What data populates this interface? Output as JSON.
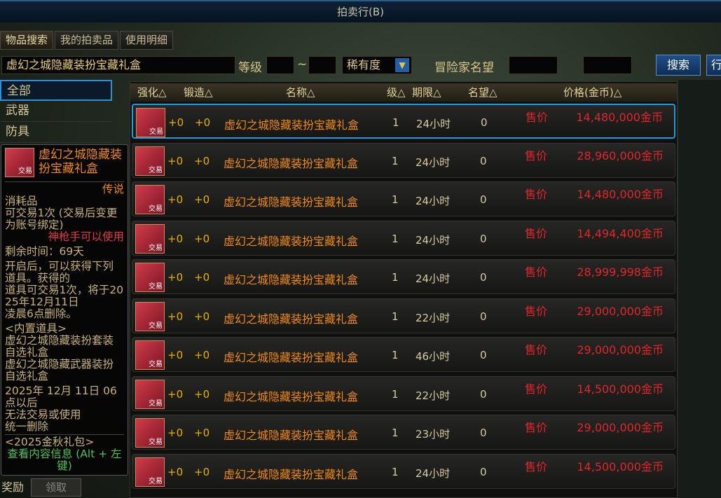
{
  "window": {
    "title": "拍卖行(B)"
  },
  "tabs": [
    "物品搜索",
    "我的拍卖品",
    "使用明细"
  ],
  "search": {
    "query": "虚幻之城隐藏装扮宝藏礼盒",
    "level_label": "等级",
    "tilde": "~",
    "rarity": "稀有度",
    "fame_label": "冒险家名望",
    "search_button": "搜索",
    "next_button": "行"
  },
  "sidebar": {
    "items": [
      "全部",
      "武器",
      "防具"
    ],
    "reward_label": "奖励",
    "claim_button": "领取"
  },
  "table": {
    "headers": [
      "强化△",
      "锻造△",
      "名称△",
      "级△",
      "期限△",
      "名望△",
      "价格(金币)△"
    ],
    "rows": [
      {
        "icon_label": "交易",
        "enhance": "+0",
        "forge": "+0",
        "name": "虚幻之城隐藏装扮宝藏礼盒",
        "level": "1",
        "time": "24小时",
        "fame": "0",
        "sell": "售价",
        "price": "14,480,000金币"
      },
      {
        "icon_label": "交易",
        "enhance": "+0",
        "forge": "+0",
        "name": "虚幻之城隐藏装扮宝藏礼盒",
        "level": "1",
        "time": "24小时",
        "fame": "0",
        "sell": "售价",
        "price": "28,960,000金币"
      },
      {
        "icon_label": "交易",
        "enhance": "+0",
        "forge": "+0",
        "name": "虚幻之城隐藏装扮宝藏礼盒",
        "level": "1",
        "time": "24小时",
        "fame": "0",
        "sell": "售价",
        "price": "14,480,000金币"
      },
      {
        "icon_label": "交易",
        "enhance": "+0",
        "forge": "+0",
        "name": "虚幻之城隐藏装扮宝藏礼盒",
        "level": "1",
        "time": "24小时",
        "fame": "0",
        "sell": "售价",
        "price": "14,494,400金币"
      },
      {
        "icon_label": "交易",
        "enhance": "+0",
        "forge": "+0",
        "name": "虚幻之城隐藏装扮宝藏礼盒",
        "level": "1",
        "time": "24小时",
        "fame": "0",
        "sell": "售价",
        "price": "28,999,998金币"
      },
      {
        "icon_label": "交易",
        "enhance": "+0",
        "forge": "+0",
        "name": "虚幻之城隐藏装扮宝藏礼盒",
        "level": "1",
        "time": "22小时",
        "fame": "0",
        "sell": "售价",
        "price": "29,000,000金币"
      },
      {
        "icon_label": "交易",
        "enhance": "+0",
        "forge": "+0",
        "name": "虚幻之城隐藏装扮宝藏礼盒",
        "level": "1",
        "time": "46小时",
        "fame": "0",
        "sell": "售价",
        "price": "29,000,000金币"
      },
      {
        "icon_label": "交易",
        "enhance": "+0",
        "forge": "+0",
        "name": "虚幻之城隐藏装扮宝藏礼盒",
        "level": "1",
        "time": "22小时",
        "fame": "0",
        "sell": "售价",
        "price": "14,500,000金币"
      },
      {
        "icon_label": "交易",
        "enhance": "+0",
        "forge": "+0",
        "name": "虚幻之城隐藏装扮宝藏礼盒",
        "level": "1",
        "time": "23小时",
        "fame": "0",
        "sell": "售价",
        "price": "29,000,000金币"
      },
      {
        "icon_label": "交易",
        "enhance": "+0",
        "forge": "+0",
        "name": "虚幻之城隐藏装扮宝藏礼盒",
        "level": "1",
        "time": "24小时",
        "fame": "0",
        "sell": "售价",
        "price": "14,500,000金币"
      }
    ]
  },
  "tooltip": {
    "icon_label": "交易",
    "title": "虚幻之城隐藏装扮宝藏礼盒",
    "rarity": "传说",
    "type": "消耗品",
    "trade": "可交易1次 (交易后变更为账号绑定)",
    "class": "神枪手可以使用",
    "remaining": "剩余时间：69天",
    "desc": [
      "开启后，可以获得下列道具。获得的",
      "道具可交易1次，将于2025年12月11日",
      "凌晨6点删除。"
    ],
    "contents": [
      "<内置道具>",
      "虚幻之城隐藏装扮套装自选礼盒",
      "虚幻之城隐藏武器装扮自选礼盒"
    ],
    "expiry": [
      "2025年 12月 11日 06点以后",
      "无法交易或使用",
      "统一删除"
    ],
    "package": "<2025金秋礼包>",
    "hint": "查看内容信息 (Alt + 左键)"
  },
  "colors": {
    "price": "#e0262a",
    "name": "#f08a14",
    "selection": "#1f9de0",
    "rarity": "#f08a14",
    "class_req": "#e03c4a",
    "hint": "#4fc05a"
  }
}
